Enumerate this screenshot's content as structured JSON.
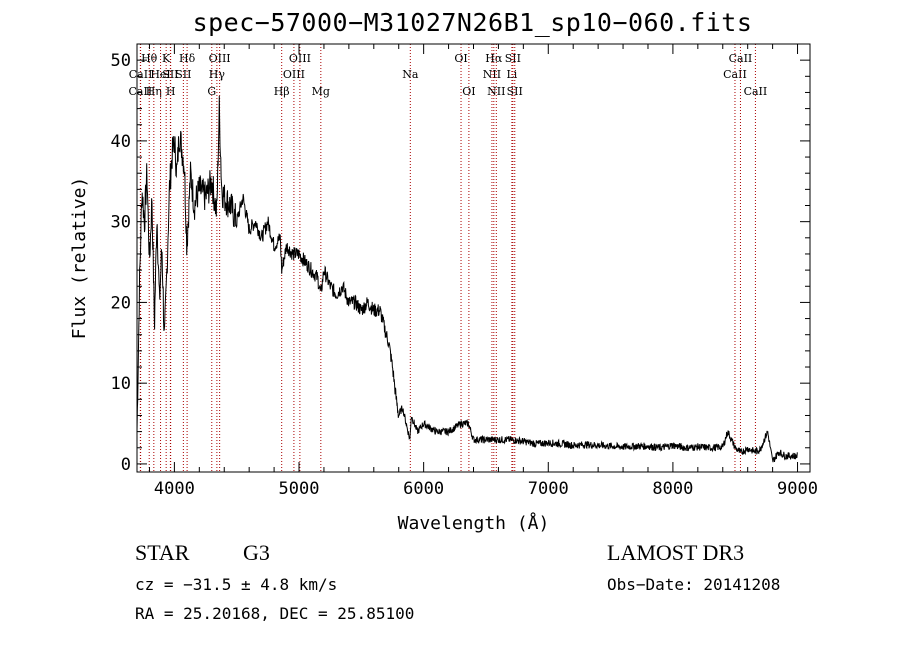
{
  "title": "spec−57000−M31027N26B1_sp10−060.fits",
  "chart_data": {
    "type": "line",
    "title": "spec-57000-M31027N26B1_sp10-060.fits",
    "xlabel": "Wavelength (Å)",
    "ylabel": "Flux (relative)",
    "xlim": [
      3700,
      9100
    ],
    "ylim": [
      -1,
      52
    ],
    "xticks": [
      4000,
      5000,
      6000,
      7000,
      8000,
      9000
    ],
    "yticks": [
      0,
      10,
      20,
      30,
      40,
      50
    ],
    "line_color": "#000000",
    "marker_color": "#aa0000",
    "series": [
      {
        "name": "flux",
        "x": [
          3700,
          3720,
          3740,
          3760,
          3780,
          3800,
          3820,
          3840,
          3860,
          3880,
          3900,
          3920,
          3940,
          3960,
          3980,
          4000,
          4020,
          4040,
          4060,
          4080,
          4100,
          4130,
          4160,
          4200,
          4250,
          4300,
          4340,
          4360,
          4380,
          4400,
          4450,
          4500,
          4550,
          4600,
          4650,
          4700,
          4750,
          4800,
          4850,
          4861,
          4900,
          4950,
          5000,
          5050,
          5100,
          5150,
          5175,
          5200,
          5250,
          5300,
          5350,
          5400,
          5450,
          5500,
          5550,
          5600,
          5650,
          5700,
          5720,
          5750,
          5780,
          5800,
          5830,
          5860,
          5890,
          5900,
          5950,
          6000,
          6100,
          6200,
          6300,
          6360,
          6400,
          6500,
          6563,
          6600,
          6700,
          6800,
          6900,
          7000,
          7100,
          7200,
          7300,
          7400,
          7500,
          7600,
          7700,
          7800,
          7900,
          8000,
          8100,
          8200,
          8300,
          8400,
          8440,
          8500,
          8542,
          8600,
          8662,
          8700,
          8760,
          8800,
          8850,
          8900,
          9000
        ],
        "y": [
          4,
          22,
          34,
          30,
          36,
          25,
          33,
          17,
          31,
          20,
          27,
          15,
          24,
          34,
          38,
          40,
          36,
          41,
          39,
          37,
          27,
          36,
          32,
          34,
          33,
          35,
          31,
          44,
          34,
          33,
          32,
          30,
          33,
          29,
          30,
          28,
          30,
          27,
          28,
          24,
          27,
          26,
          26,
          25,
          24,
          23,
          21,
          24,
          22,
          21,
          22,
          20,
          20,
          19,
          20,
          19,
          19,
          16,
          15,
          12,
          8,
          6,
          7,
          5,
          3,
          6,
          4,
          5,
          4,
          4,
          5,
          5,
          3,
          3,
          3,
          3,
          3,
          2.8,
          2.5,
          2.6,
          2.5,
          2.3,
          2.4,
          2.3,
          2.2,
          2.1,
          2.2,
          2.2,
          2.0,
          2.3,
          2.0,
          2.1,
          2.0,
          2.1,
          4.0,
          2.0,
          1.4,
          1.9,
          1.5,
          1.8,
          4.0,
          0.3,
          1.5,
          1.0,
          1.0
        ]
      }
    ],
    "line_markers": [
      {
        "label": "CaII",
        "wavelength": 3727,
        "row": 2
      },
      {
        "label": "CaII",
        "wavelength": 3729,
        "row": 1
      },
      {
        "label": "Hθ",
        "wavelength": 3798,
        "row": 0
      },
      {
        "label": "Hη",
        "wavelength": 3835,
        "row": 2
      },
      {
        "label": "HeI",
        "wavelength": 3889,
        "row": 1
      },
      {
        "label": "K",
        "wavelength": 3934,
        "row": 0
      },
      {
        "label": "SII",
        "wavelength": 3968,
        "row": 1
      },
      {
        "label": "H",
        "wavelength": 3970,
        "row": 2
      },
      {
        "label": "Hδ",
        "wavelength": 4102,
        "row": 0
      },
      {
        "label": "SII",
        "wavelength": 4072,
        "row": 1
      },
      {
        "label": "G",
        "wavelength": 4300,
        "row": 2
      },
      {
        "label": "OIII",
        "wavelength": 4363,
        "row": 0
      },
      {
        "label": "Hγ",
        "wavelength": 4341,
        "row": 1
      },
      {
        "label": "Hβ",
        "wavelength": 4861,
        "row": 2
      },
      {
        "label": "OIII",
        "wavelength": 4959,
        "row": 1
      },
      {
        "label": "OIII",
        "wavelength": 5007,
        "row": 0
      },
      {
        "label": "Mg",
        "wavelength": 5175,
        "row": 2
      },
      {
        "label": "Na",
        "wavelength": 5893,
        "row": 1
      },
      {
        "label": "OI",
        "wavelength": 6300,
        "row": 0
      },
      {
        "label": "OI",
        "wavelength": 6363,
        "row": 2
      },
      {
        "label": "NII",
        "wavelength": 6548,
        "row": 1
      },
      {
        "label": "Hα",
        "wavelength": 6563,
        "row": 0
      },
      {
        "label": "NII",
        "wavelength": 6583,
        "row": 2
      },
      {
        "label": "SII",
        "wavelength": 6716,
        "row": 0
      },
      {
        "label": "Li",
        "wavelength": 6708,
        "row": 1
      },
      {
        "label": "SII",
        "wavelength": 6731,
        "row": 2
      },
      {
        "label": "CaII",
        "wavelength": 8498,
        "row": 1
      },
      {
        "label": "CaII",
        "wavelength": 8542,
        "row": 0
      },
      {
        "label": "CaII",
        "wavelength": 8662,
        "row": 2
      }
    ]
  },
  "info": {
    "class": "STAR",
    "subclass": "G3",
    "survey": "LAMOST DR3",
    "cz": "cz = −31.5 ± 4.8 km/s",
    "obs_date": "Obs−Date: 20141208",
    "coords": "RA =  25.20168, DEC =  25.85100"
  }
}
